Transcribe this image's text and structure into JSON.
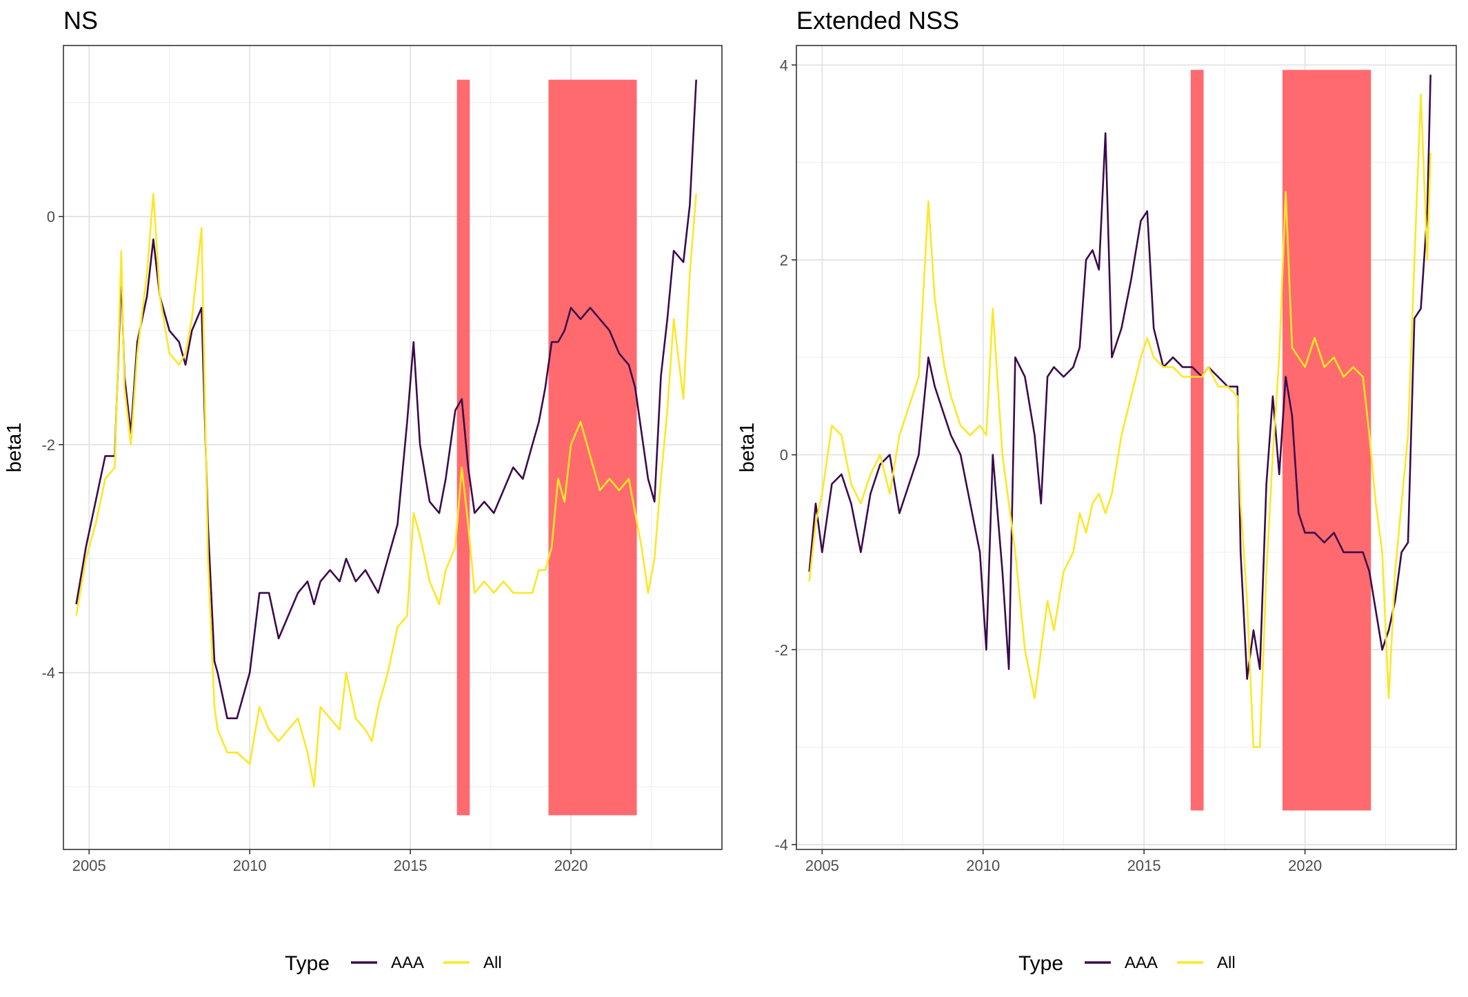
{
  "chart_data": [
    {
      "type": "line",
      "title": "NS",
      "xlabel": "",
      "ylabel": "beta1",
      "xlim": [
        2004.2,
        2024.7
      ],
      "ylim": [
        -5.55,
        1.5
      ],
      "x_ticks": [
        2005,
        2010,
        2015,
        2020
      ],
      "y_ticks": [
        -4,
        -2,
        0
      ],
      "y_tick_labels": [
        "-4",
        "-2",
        "0"
      ],
      "grid": true,
      "legend": {
        "title": "Type",
        "position": "bottom",
        "entries": [
          "AAA",
          "All"
        ]
      },
      "shaded_regions": [
        {
          "x_start": 2016.45,
          "x_end": 2016.85,
          "y_bottom": -5.25,
          "y_top": 1.2,
          "color": "#ff6a6f"
        },
        {
          "x_start": 2019.3,
          "x_end": 2022.05,
          "y_bottom": -5.25,
          "y_top": 1.2,
          "color": "#ff6a6f"
        }
      ],
      "series": [
        {
          "name": "AAA",
          "color": "#3b0a4b",
          "x": [
            2004.6,
            2004.9,
            2005.2,
            2005.5,
            2005.8,
            2006.0,
            2006.1,
            2006.3,
            2006.5,
            2006.8,
            2007.0,
            2007.2,
            2007.5,
            2007.8,
            2008.0,
            2008.2,
            2008.5,
            2008.7,
            2008.9,
            2009.0,
            2009.3,
            2009.6,
            2010.0,
            2010.3,
            2010.6,
            2010.9,
            2011.2,
            2011.5,
            2011.8,
            2012.0,
            2012.2,
            2012.5,
            2012.8,
            2013.0,
            2013.3,
            2013.6,
            2013.8,
            2014.0,
            2014.3,
            2014.6,
            2014.9,
            2015.1,
            2015.3,
            2015.6,
            2015.9,
            2016.1,
            2016.4,
            2016.6,
            2016.8,
            2017.0,
            2017.3,
            2017.6,
            2017.9,
            2018.2,
            2018.5,
            2018.8,
            2019.0,
            2019.2,
            2019.4,
            2019.6,
            2019.8,
            2020.0,
            2020.3,
            2020.6,
            2020.9,
            2021.2,
            2021.5,
            2021.8,
            2022.0,
            2022.2,
            2022.4,
            2022.6,
            2022.8,
            2023.0,
            2023.2,
            2023.5,
            2023.7,
            2023.9
          ],
          "y": [
            -3.4,
            -2.9,
            -2.5,
            -2.1,
            -2.1,
            -0.5,
            -1.4,
            -1.9,
            -1.1,
            -0.7,
            -0.2,
            -0.7,
            -1.0,
            -1.1,
            -1.3,
            -1.0,
            -0.8,
            -2.7,
            -3.9,
            -4.0,
            -4.4,
            -4.4,
            -4.0,
            -3.3,
            -3.3,
            -3.7,
            -3.5,
            -3.3,
            -3.2,
            -3.4,
            -3.2,
            -3.1,
            -3.2,
            -3.0,
            -3.2,
            -3.1,
            -3.2,
            -3.3,
            -3.0,
            -2.7,
            -1.8,
            -1.1,
            -2.0,
            -2.5,
            -2.6,
            -2.3,
            -1.7,
            -1.6,
            -2.2,
            -2.6,
            -2.5,
            -2.6,
            -2.4,
            -2.2,
            -2.3,
            -2.0,
            -1.8,
            -1.5,
            -1.1,
            -1.1,
            -1.0,
            -0.8,
            -0.9,
            -0.8,
            -0.9,
            -1.0,
            -1.2,
            -1.3,
            -1.5,
            -1.9,
            -2.3,
            -2.5,
            -1.4,
            -0.9,
            -0.3,
            -0.4,
            0.1,
            1.2
          ]
        },
        {
          "name": "All",
          "color": "#fde725",
          "x": [
            2004.6,
            2004.9,
            2005.2,
            2005.5,
            2005.8,
            2006.0,
            2006.1,
            2006.3,
            2006.5,
            2006.8,
            2007.0,
            2007.2,
            2007.5,
            2007.8,
            2008.0,
            2008.2,
            2008.5,
            2008.7,
            2008.9,
            2009.0,
            2009.3,
            2009.6,
            2010.0,
            2010.3,
            2010.6,
            2010.9,
            2011.2,
            2011.5,
            2011.8,
            2012.0,
            2012.2,
            2012.5,
            2012.8,
            2013.0,
            2013.3,
            2013.6,
            2013.8,
            2014.0,
            2014.3,
            2014.6,
            2014.9,
            2015.1,
            2015.3,
            2015.6,
            2015.9,
            2016.1,
            2016.4,
            2016.6,
            2016.8,
            2017.0,
            2017.3,
            2017.6,
            2017.9,
            2018.2,
            2018.5,
            2018.8,
            2019.0,
            2019.2,
            2019.4,
            2019.6,
            2019.8,
            2020.0,
            2020.3,
            2020.6,
            2020.9,
            2021.2,
            2021.5,
            2021.8,
            2022.0,
            2022.2,
            2022.4,
            2022.6,
            2022.8,
            2023.0,
            2023.2,
            2023.5,
            2023.7,
            2023.9
          ],
          "y": [
            -3.5,
            -3.0,
            -2.7,
            -2.3,
            -2.2,
            -0.3,
            -1.5,
            -2.0,
            -1.2,
            -0.5,
            0.2,
            -0.7,
            -1.2,
            -1.3,
            -1.2,
            -0.9,
            -0.1,
            -3.0,
            -4.3,
            -4.5,
            -4.7,
            -4.7,
            -4.8,
            -4.3,
            -4.5,
            -4.6,
            -4.5,
            -4.4,
            -4.7,
            -5.0,
            -4.3,
            -4.4,
            -4.5,
            -4.0,
            -4.4,
            -4.5,
            -4.6,
            -4.3,
            -4.0,
            -3.6,
            -3.5,
            -2.6,
            -2.8,
            -3.2,
            -3.4,
            -3.1,
            -2.9,
            -2.2,
            -2.7,
            -3.3,
            -3.2,
            -3.3,
            -3.2,
            -3.3,
            -3.3,
            -3.3,
            -3.1,
            -3.1,
            -2.9,
            -2.3,
            -2.5,
            -2.0,
            -1.8,
            -2.1,
            -2.4,
            -2.3,
            -2.4,
            -2.3,
            -2.6,
            -2.9,
            -3.3,
            -3.0,
            -2.3,
            -1.7,
            -0.9,
            -1.6,
            -0.5,
            0.2
          ]
        }
      ]
    },
    {
      "type": "line",
      "title": "Extended NSS",
      "xlabel": "",
      "ylabel": "beta1",
      "xlim": [
        2004.2,
        2024.7
      ],
      "ylim": [
        -4.05,
        4.2
      ],
      "x_ticks": [
        2005,
        2010,
        2015,
        2020
      ],
      "y_ticks": [
        -4,
        -2,
        0,
        2,
        4
      ],
      "y_tick_labels": [
        "-4",
        "-2",
        "0",
        "2",
        "4"
      ],
      "grid": true,
      "legend": {
        "title": "Type",
        "position": "bottom",
        "entries": [
          "AAA",
          "All"
        ]
      },
      "shaded_regions": [
        {
          "x_start": 2016.45,
          "x_end": 2016.85,
          "y_bottom": -3.65,
          "y_top": 3.95,
          "color": "#ff6a6f"
        },
        {
          "x_start": 2019.3,
          "x_end": 2022.05,
          "y_bottom": -3.65,
          "y_top": 3.95,
          "color": "#ff6a6f"
        }
      ],
      "series": [
        {
          "name": "AAA",
          "color": "#3b0a4b",
          "x": [
            2004.6,
            2004.8,
            2005.0,
            2005.3,
            2005.6,
            2005.9,
            2006.2,
            2006.5,
            2006.8,
            2007.1,
            2007.4,
            2007.7,
            2008.0,
            2008.3,
            2008.5,
            2008.8,
            2009.0,
            2009.3,
            2009.6,
            2009.9,
            2010.1,
            2010.3,
            2010.6,
            2010.8,
            2011.0,
            2011.3,
            2011.6,
            2011.8,
            2012.0,
            2012.2,
            2012.5,
            2012.8,
            2013.0,
            2013.2,
            2013.4,
            2013.6,
            2013.8,
            2014.0,
            2014.3,
            2014.6,
            2014.9,
            2015.1,
            2015.3,
            2015.6,
            2015.9,
            2016.2,
            2016.5,
            2016.8,
            2017.0,
            2017.3,
            2017.6,
            2017.9,
            2018.0,
            2018.2,
            2018.4,
            2018.6,
            2018.8,
            2019.0,
            2019.2,
            2019.4,
            2019.6,
            2019.8,
            2020.0,
            2020.3,
            2020.6,
            2020.9,
            2021.2,
            2021.5,
            2021.8,
            2022.0,
            2022.2,
            2022.4,
            2022.6,
            2022.8,
            2023.0,
            2023.2,
            2023.4,
            2023.6,
            2023.8,
            2023.9
          ],
          "y": [
            -1.2,
            -0.5,
            -1.0,
            -0.3,
            -0.2,
            -0.5,
            -1.0,
            -0.4,
            -0.1,
            0.0,
            -0.6,
            -0.3,
            0.0,
            1.0,
            0.7,
            0.4,
            0.2,
            0.0,
            -0.5,
            -1.0,
            -2.0,
            0.0,
            -1.2,
            -2.2,
            1.0,
            0.8,
            0.2,
            -0.5,
            0.8,
            0.9,
            0.8,
            0.9,
            1.1,
            2.0,
            2.1,
            1.9,
            3.3,
            1.0,
            1.3,
            1.8,
            2.4,
            2.5,
            1.3,
            0.9,
            1.0,
            0.9,
            0.9,
            0.8,
            0.9,
            0.8,
            0.7,
            0.7,
            -1.0,
            -2.3,
            -1.8,
            -2.2,
            -0.3,
            0.6,
            -0.2,
            0.8,
            0.4,
            -0.6,
            -0.8,
            -0.8,
            -0.9,
            -0.8,
            -1.0,
            -1.0,
            -1.0,
            -1.2,
            -1.6,
            -2.0,
            -1.8,
            -1.5,
            -1.0,
            -0.9,
            1.4,
            1.5,
            2.5,
            3.9
          ]
        },
        {
          "name": "All",
          "color": "#fde725",
          "x": [
            2004.6,
            2004.8,
            2005.0,
            2005.3,
            2005.6,
            2005.9,
            2006.2,
            2006.5,
            2006.8,
            2007.1,
            2007.4,
            2007.7,
            2008.0,
            2008.3,
            2008.5,
            2008.8,
            2009.0,
            2009.3,
            2009.6,
            2009.9,
            2010.1,
            2010.3,
            2010.6,
            2010.8,
            2011.0,
            2011.3,
            2011.6,
            2011.8,
            2012.0,
            2012.2,
            2012.5,
            2012.8,
            2013.0,
            2013.2,
            2013.4,
            2013.6,
            2013.8,
            2014.0,
            2014.3,
            2014.6,
            2014.9,
            2015.1,
            2015.3,
            2015.6,
            2015.9,
            2016.2,
            2016.5,
            2016.8,
            2017.0,
            2017.3,
            2017.6,
            2017.9,
            2018.0,
            2018.2,
            2018.4,
            2018.6,
            2018.8,
            2019.0,
            2019.2,
            2019.4,
            2019.6,
            2019.8,
            2020.0,
            2020.3,
            2020.6,
            2020.9,
            2021.2,
            2021.5,
            2021.8,
            2022.0,
            2022.2,
            2022.4,
            2022.6,
            2022.8,
            2023.0,
            2023.2,
            2023.4,
            2023.6,
            2023.8,
            2023.9
          ],
          "y": [
            -1.3,
            -0.7,
            -0.4,
            0.3,
            0.2,
            -0.3,
            -0.5,
            -0.2,
            0.0,
            -0.4,
            0.2,
            0.5,
            0.8,
            2.6,
            1.6,
            0.9,
            0.6,
            0.3,
            0.2,
            0.3,
            0.2,
            1.5,
            0.0,
            -0.5,
            -1.0,
            -2.0,
            -2.5,
            -2.0,
            -1.5,
            -1.8,
            -1.2,
            -1.0,
            -0.6,
            -0.8,
            -0.5,
            -0.4,
            -0.6,
            -0.4,
            0.2,
            0.6,
            1.0,
            1.2,
            1.0,
            0.9,
            0.9,
            0.8,
            0.8,
            0.8,
            0.9,
            0.7,
            0.7,
            0.6,
            -0.5,
            -1.5,
            -3.0,
            -3.0,
            -1.2,
            0.0,
            1.0,
            2.7,
            1.1,
            1.0,
            0.9,
            1.2,
            0.9,
            1.0,
            0.8,
            0.9,
            0.8,
            0.2,
            -0.5,
            -1.0,
            -2.5,
            -1.2,
            -0.5,
            0.2,
            2.0,
            3.7,
            2.0,
            3.1
          ]
        }
      ]
    }
  ]
}
